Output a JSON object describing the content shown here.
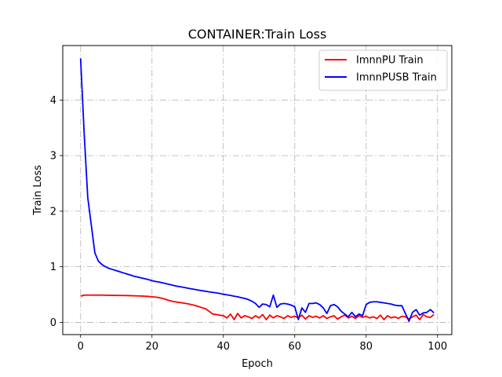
{
  "chart_data": {
    "type": "line",
    "title": "CONTAINER:Train Loss",
    "xlabel": "Epoch",
    "ylabel": "Train Loss",
    "xlim": [
      -5,
      104
    ],
    "ylim": [
      -0.22,
      4.98
    ],
    "xticks": [
      0,
      20,
      40,
      60,
      80,
      100
    ],
    "yticks": [
      0,
      1,
      2,
      3,
      4
    ],
    "grid": true,
    "grid_style": "dashdot",
    "legend_position": "top-right",
    "series": [
      {
        "name": "ImnnPU Train",
        "color": "#ff0000",
        "x": [
          0,
          1,
          2,
          3,
          4,
          5,
          6,
          7,
          8,
          9,
          10,
          11,
          12,
          13,
          14,
          15,
          16,
          17,
          18,
          19,
          20,
          21,
          22,
          23,
          24,
          25,
          26,
          27,
          28,
          29,
          30,
          31,
          32,
          33,
          34,
          35,
          36,
          37,
          38,
          39,
          40,
          41,
          42,
          43,
          44,
          45,
          46,
          47,
          48,
          49,
          50,
          51,
          52,
          53,
          54,
          55,
          56,
          57,
          58,
          59,
          60,
          61,
          62,
          63,
          64,
          65,
          66,
          67,
          68,
          69,
          70,
          71,
          72,
          73,
          74,
          75,
          76,
          77,
          78,
          79,
          80,
          81,
          82,
          83,
          84,
          85,
          86,
          87,
          88,
          89,
          90,
          91,
          92,
          93,
          94,
          95,
          96,
          97,
          98,
          99
        ],
        "values": [
          0.47,
          0.49,
          0.49,
          0.49,
          0.49,
          0.49,
          0.49,
          0.488,
          0.487,
          0.486,
          0.485,
          0.484,
          0.483,
          0.482,
          0.48,
          0.478,
          0.476,
          0.474,
          0.47,
          0.466,
          0.46,
          0.455,
          0.445,
          0.43,
          0.41,
          0.39,
          0.375,
          0.365,
          0.355,
          0.345,
          0.335,
          0.32,
          0.305,
          0.285,
          0.265,
          0.245,
          0.2,
          0.15,
          0.14,
          0.13,
          0.12,
          0.08,
          0.15,
          0.05,
          0.16,
          0.08,
          0.12,
          0.1,
          0.07,
          0.12,
          0.08,
          0.14,
          0.05,
          0.13,
          0.08,
          0.12,
          0.1,
          0.07,
          0.12,
          0.09,
          0.11,
          0.08,
          0.13,
          0.06,
          0.12,
          0.09,
          0.11,
          0.08,
          0.12,
          0.07,
          0.1,
          0.12,
          0.06,
          0.1,
          0.13,
          0.08,
          0.11,
          0.07,
          0.12,
          0.09,
          0.11,
          0.08,
          0.1,
          0.07,
          0.13,
          0.05,
          0.12,
          0.08,
          0.1,
          0.07,
          0.11,
          0.1,
          0.06,
          0.1,
          0.13,
          0.05,
          0.14,
          0.1,
          0.09,
          0.14
        ]
      },
      {
        "name": "ImnnPUSB Train",
        "color": "#0000ff",
        "x": [
          0,
          1,
          2,
          3,
          4,
          5,
          6,
          7,
          8,
          9,
          10,
          11,
          12,
          13,
          14,
          15,
          16,
          17,
          18,
          19,
          20,
          21,
          22,
          23,
          24,
          25,
          26,
          27,
          28,
          29,
          30,
          31,
          32,
          33,
          34,
          35,
          36,
          37,
          38,
          39,
          40,
          41,
          42,
          43,
          44,
          45,
          46,
          47,
          48,
          49,
          50,
          51,
          52,
          53,
          54,
          55,
          56,
          57,
          58,
          59,
          60,
          61,
          62,
          63,
          64,
          65,
          66,
          67,
          68,
          69,
          70,
          71,
          72,
          73,
          74,
          75,
          76,
          77,
          78,
          79,
          80,
          81,
          82,
          83,
          84,
          85,
          86,
          87,
          88,
          89,
          90,
          91,
          92,
          93,
          94,
          95,
          96,
          97,
          98,
          99
        ],
        "values": [
          4.75,
          3.4,
          2.25,
          1.75,
          1.25,
          1.1,
          1.04,
          1.0,
          0.97,
          0.95,
          0.93,
          0.91,
          0.89,
          0.87,
          0.85,
          0.83,
          0.815,
          0.8,
          0.785,
          0.77,
          0.75,
          0.735,
          0.725,
          0.71,
          0.695,
          0.68,
          0.665,
          0.65,
          0.64,
          0.628,
          0.615,
          0.603,
          0.592,
          0.58,
          0.57,
          0.56,
          0.548,
          0.54,
          0.53,
          0.52,
          0.505,
          0.495,
          0.485,
          0.47,
          0.46,
          0.445,
          0.43,
          0.41,
          0.38,
          0.34,
          0.27,
          0.33,
          0.32,
          0.28,
          0.49,
          0.27,
          0.33,
          0.34,
          0.33,
          0.31,
          0.28,
          0.05,
          0.26,
          0.18,
          0.34,
          0.34,
          0.35,
          0.32,
          0.26,
          0.16,
          0.3,
          0.32,
          0.28,
          0.2,
          0.15,
          0.1,
          0.18,
          0.1,
          0.15,
          0.12,
          0.32,
          0.36,
          0.37,
          0.37,
          0.36,
          0.35,
          0.34,
          0.33,
          0.31,
          0.3,
          0.3,
          0.16,
          0.02,
          0.18,
          0.23,
          0.13,
          0.17,
          0.18,
          0.23,
          0.17
        ]
      }
    ]
  }
}
